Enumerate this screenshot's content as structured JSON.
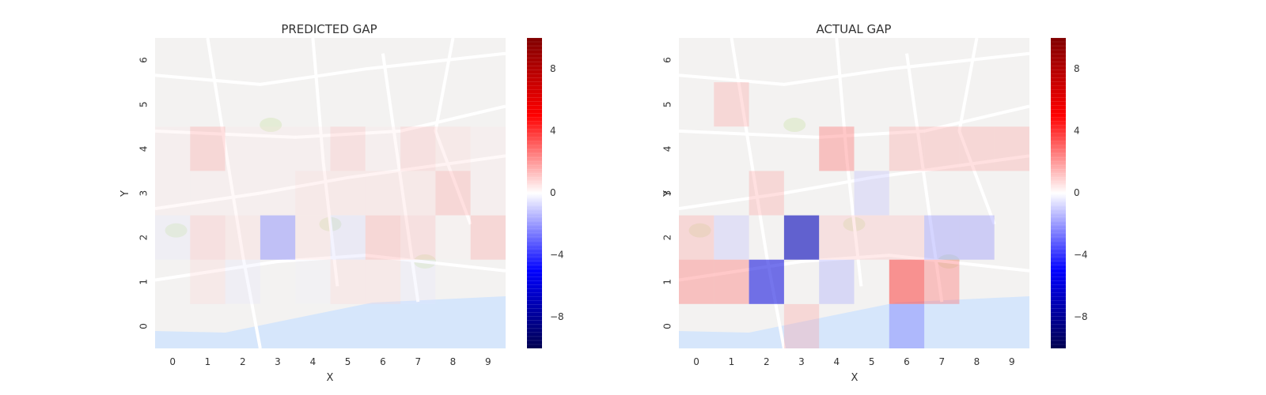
{
  "chart_data": [
    {
      "type": "heatmap",
      "title": "PREDICTED GAP",
      "xlabel": "X",
      "ylabel": "Y",
      "x_ticks": [
        "0",
        "1",
        "2",
        "3",
        "4",
        "5",
        "6",
        "7",
        "8",
        "9"
      ],
      "y_ticks": [
        "0",
        "1",
        "2",
        "3",
        "4",
        "5",
        "6"
      ],
      "background": "street map of Porto (semi-transparent)",
      "grid_rows": [
        6,
        5,
        4,
        3,
        2,
        1,
        0
      ],
      "values": [
        [
          0,
          0,
          0,
          0,
          0,
          0,
          0,
          0,
          0,
          0
        ],
        [
          0,
          0,
          0,
          0,
          0,
          0,
          0,
          0,
          0,
          0
        ],
        [
          0.5,
          2,
          0.5,
          0.5,
          0.5,
          1.5,
          0.5,
          1.5,
          1,
          0.5
        ],
        [
          0.5,
          0.5,
          0.5,
          0.5,
          1,
          1,
          1,
          1,
          2,
          0.5
        ],
        [
          -0.5,
          1.5,
          1,
          -3,
          1,
          -1,
          2,
          1.5,
          0.3,
          2
        ],
        [
          0,
          1,
          -0.5,
          0,
          -0.3,
          1,
          1,
          -0.5,
          0,
          0
        ],
        [
          0,
          0,
          0,
          0,
          0,
          0,
          0,
          0,
          0,
          0
        ]
      ],
      "colorbar": {
        "min": -10,
        "max": 10,
        "ticks": [
          "8",
          "4",
          "0",
          "−4",
          "−8"
        ],
        "tick_values": [
          8,
          4,
          0,
          -4,
          -8
        ],
        "colormap": "seismic"
      }
    },
    {
      "type": "heatmap",
      "title": "ACTUAL GAP",
      "xlabel": "X",
      "ylabel": "Y",
      "x_ticks": [
        "0",
        "1",
        "2",
        "3",
        "4",
        "5",
        "6",
        "7",
        "8",
        "9"
      ],
      "y_ticks": [
        "0",
        "1",
        "2",
        "3",
        "4",
        "5",
        "6"
      ],
      "background": "street map of Porto (semi-transparent)",
      "grid_rows": [
        6,
        5,
        4,
        3,
        2,
        1,
        0
      ],
      "values": [
        [
          0,
          0,
          0,
          0,
          0,
          0,
          0,
          0,
          0,
          0
        ],
        [
          0,
          2,
          0,
          0,
          0,
          0,
          0,
          0,
          0,
          0
        ],
        [
          0,
          0,
          0,
          0,
          3,
          0,
          2,
          2,
          2,
          2
        ],
        [
          0,
          0,
          2,
          0,
          0,
          -1.5,
          0,
          0,
          0,
          0
        ],
        [
          2,
          -1.5,
          0,
          -7,
          1.5,
          1.5,
          1.5,
          -2.5,
          -2.5,
          0
        ],
        [
          3,
          3,
          -6,
          0,
          -2,
          0,
          4.5,
          3,
          0,
          0
        ],
        [
          0,
          0,
          0,
          2,
          0,
          0,
          -3,
          0,
          0,
          0
        ]
      ],
      "colorbar": {
        "min": -10,
        "max": 10,
        "ticks": [
          "8",
          "4",
          "0",
          "−4",
          "−8"
        ],
        "tick_values": [
          8,
          4,
          0,
          -4,
          -8
        ],
        "colormap": "seismic"
      }
    }
  ],
  "colors": {
    "map_land": "#f3f2f1",
    "map_roads": "#ffffff",
    "map_water": "#d6e6fb",
    "map_park": "#e4ecd6",
    "text": "#333333"
  }
}
